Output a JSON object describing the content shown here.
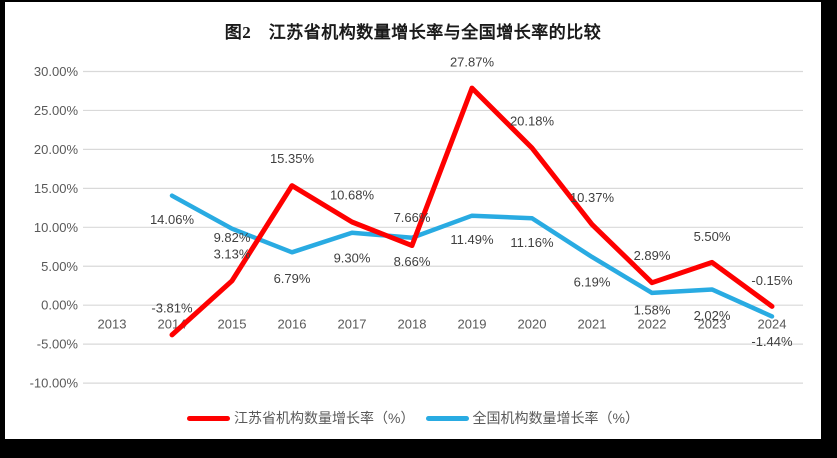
{
  "chart_data": {
    "type": "line",
    "title": "图2　江苏省机构数量增长率与全国增长率的比较",
    "categories": [
      "2013",
      "2014",
      "2015",
      "2016",
      "2017",
      "2018",
      "2019",
      "2020",
      "2021",
      "2022",
      "2023",
      "2024"
    ],
    "series": [
      {
        "name": "江苏省机构数量增长率（%）",
        "color": "#FE0000",
        "values": [
          null,
          -3.81,
          3.13,
          15.35,
          10.68,
          7.66,
          27.87,
          20.18,
          10.37,
          2.89,
          5.5,
          -0.15
        ],
        "labels": [
          "",
          "-3.81%",
          "3.13%",
          "15.35%",
          "10.68%",
          "7.66%",
          "27.87%",
          "20.18%",
          "10.37%",
          "2.89%",
          "5.50%",
          "-0.15%"
        ]
      },
      {
        "name": "全国机构数量增长率（%）",
        "color": "#29ABE2",
        "values": [
          null,
          14.06,
          9.82,
          6.79,
          9.3,
          8.66,
          11.49,
          11.16,
          6.19,
          1.58,
          2.02,
          -1.44
        ],
        "labels": [
          "",
          "14.06%",
          "9.82%",
          "6.79%",
          "9.30%",
          "8.66%",
          "11.49%",
          "11.16%",
          "6.19%",
          "1.58%",
          "2.02%",
          "-1.44%"
        ]
      }
    ],
    "y_axis": {
      "tick_labels": [
        "30.00%",
        "25.00%",
        "20.00%",
        "15.00%",
        "10.00%",
        "5.00%",
        "0.00%",
        "-5.00%",
        "-10.00%"
      ],
      "tick_values": [
        30,
        25,
        20,
        15,
        10,
        5,
        0,
        -5,
        -10
      ],
      "range": [
        -10,
        30
      ]
    },
    "grid": true,
    "legend_position": "bottom",
    "colors": {
      "series_jiangsu": "#FE0000",
      "series_national": "#29ABE2",
      "gridline": "#D9D9D9",
      "axis_text": "#595959",
      "data_label": "#404040",
      "plot_background": "#FFFFFF",
      "frame": "#000000"
    }
  }
}
